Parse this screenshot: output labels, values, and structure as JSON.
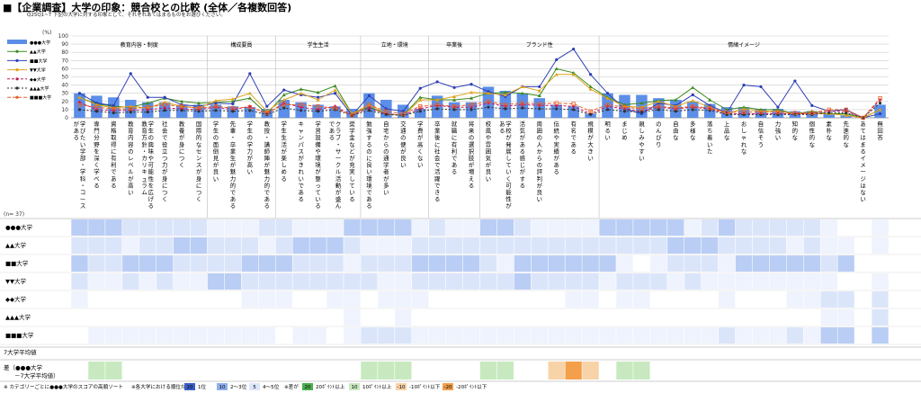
{
  "page": {
    "title": "■【企業調査】大学の印象：競合校との比較 (全体／各複数回答)",
    "subtitle": "Q25Q1~7  下記の大学に対する印象として、それぞれあてはまるものをお選びください。",
    "n_label": "(n= 37)",
    "avg_label": "7大学平均値",
    "diff_label_1": "差（●●●大学",
    "diff_label_2": "－7大学平均値）",
    "foot_left": "※ カテゴリーごとに●●●大学のスコアの高順ソート",
    "foot_rank": "※各大学における順位が",
    "foot_diff": "※差が"
  },
  "rank_legend": [
    {
      "box": "20",
      "text": "1位",
      "bg": "#3b5fc7",
      "fg": "#ffffff"
    },
    {
      "box": "10",
      "text": "2～3位",
      "bg": "#8fb0ee",
      "fg": "#000000"
    },
    {
      "box": "5",
      "text": "4～5位",
      "bg": "#dce6fb",
      "fg": "#000000"
    }
  ],
  "diff_legend": [
    {
      "box": "20",
      "text": "20ﾎﾟｲﾝﾄ以上",
      "bg": "#4caf50"
    },
    {
      "box": "10",
      "text": "10ﾎﾟｲﾝﾄ以上",
      "bg": "#c8e9c0"
    },
    {
      "box": "-10",
      "text": "-10ﾎﾟｲﾝﾄ以下",
      "bg": "#f8d3a8"
    },
    {
      "box": "-20",
      "text": "-20ﾎﾟｲﾝﾄ以下",
      "bg": "#f4a04a"
    }
  ],
  "colors": {
    "bar": "#5b8ee8",
    "grid": "#cccccc",
    "s2": "#3b8a1f",
    "s3": "#2e3fb5",
    "s4": "#e0a21a",
    "s5": "#c2185b",
    "s6": "#333333",
    "s7": "#e85d2a"
  },
  "chart_data": {
    "type": "bar",
    "ylabel": "(%)",
    "ylim": [
      0,
      100
    ],
    "yticks": [
      0,
      10,
      20,
      30,
      40,
      50,
      60,
      70,
      80,
      90,
      100
    ],
    "grid": true,
    "legend_position": "top-left",
    "categories": [
      "学びたい学部・学科・コースがある",
      "専門分野を深く学べる",
      "資格取得に有利である",
      "教育内容のレベルが高い",
      "学生の興味や可能性を広げる教育方針・カリキュラム",
      "社会で役立つ力が身につく",
      "教養が身につく",
      "国際的なセンスが身につく",
      "学生の面倒見が良い",
      "先輩・卒業生が魅力的である",
      "学生の学力が高い",
      "教授・講師陣が魅力的である",
      "学生生活が楽しめる",
      "キャンパスがきれいである",
      "学習設備や環境が整っている",
      "クラブ・サークル活動が盛んである",
      "奨学金などが充実している",
      "勉強するのに良い環境である",
      "自宅からの通学者が多い",
      "交通の便が良い",
      "学費が高くない",
      "卒業後に社会で活躍できる",
      "就職に有利である",
      "将来の選択肢が増える",
      "校風や雰囲気が良い",
      "学校が発展していく可能性がある",
      "活気がある感じがする",
      "周囲の人からの評判が良い",
      "伝統や実績がある",
      "有名である",
      "規模が大きい",
      "明るい",
      "まじめ",
      "親しみやすい",
      "のんびり",
      "自由な",
      "多様な",
      "落ち着いた",
      "上品な",
      "おしゃれな",
      "自信そう",
      "力強い",
      "知的な",
      "個性的な",
      "素朴な",
      "先進的な",
      "あてはまるイメージはない",
      "無回答"
    ],
    "category_groups": [
      {
        "name": "教育内容・制度",
        "start": 0,
        "end": 7
      },
      {
        "name": "構成要員",
        "start": 8,
        "end": 11
      },
      {
        "name": "学生生活",
        "start": 12,
        "end": 16
      },
      {
        "name": "立地・環境",
        "start": 17,
        "end": 20
      },
      {
        "name": "卒業後",
        "start": 21,
        "end": 23
      },
      {
        "name": "ブランド性",
        "start": 24,
        "end": 30
      },
      {
        "name": "情緒イメージ",
        "start": 31,
        "end": 47
      }
    ],
    "series": [
      {
        "name": "●●●大学",
        "kind": "bar",
        "values": [
          30,
          27,
          25,
          22,
          19,
          19,
          16,
          16,
          16,
          14,
          13,
          11,
          22,
          19,
          16,
          14,
          11,
          30,
          22,
          16,
          11,
          27,
          19,
          19,
          38,
          33,
          30,
          24,
          16,
          14,
          5,
          30,
          28,
          28,
          24,
          22,
          20,
          17,
          13,
          13,
          11,
          11,
          8,
          8,
          5,
          3,
          0,
          16
        ]
      },
      {
        "name": "▲▲大学",
        "kind": "line",
        "values": [
          25,
          17,
          14,
          13,
          18,
          24,
          20,
          18,
          19,
          20,
          24,
          5,
          28,
          35,
          31,
          39,
          5,
          13,
          5,
          3,
          25,
          22,
          22,
          24,
          30,
          31,
          30,
          27,
          60,
          55,
          38,
          25,
          16,
          18,
          21,
          22,
          37,
          22,
          10,
          13,
          10,
          10,
          5,
          8,
          5,
          5,
          0,
          10
        ]
      },
      {
        "name": "■■大学",
        "kind": "line",
        "values": [
          30,
          18,
          15,
          54,
          25,
          25,
          16,
          14,
          18,
          17,
          54,
          14,
          34,
          28,
          25,
          30,
          3,
          27,
          11,
          8,
          36,
          44,
          37,
          41,
          32,
          26,
          38,
          38,
          71,
          84,
          53,
          30,
          11,
          5,
          18,
          15,
          28,
          15,
          6,
          40,
          38,
          13,
          45,
          15,
          8,
          10,
          0,
          5
        ]
      },
      {
        "name": "▼▼大学",
        "kind": "line",
        "values": [
          25,
          16,
          12,
          14,
          12,
          19,
          14,
          12,
          21,
          23,
          30,
          8,
          22,
          30,
          22,
          34,
          5,
          16,
          5,
          3,
          22,
          22,
          26,
          31,
          30,
          28,
          38,
          33,
          53,
          53,
          35,
          24,
          14,
          13,
          20,
          14,
          21,
          13,
          5,
          11,
          8,
          8,
          5,
          5,
          5,
          3,
          0,
          10
        ]
      },
      {
        "name": "◆◆大学",
        "kind": "line",
        "values": [
          19,
          10,
          9,
          9,
          10,
          12,
          11,
          10,
          13,
          10,
          14,
          5,
          18,
          13,
          10,
          14,
          3,
          12,
          5,
          3,
          11,
          15,
          13,
          13,
          18,
          14,
          16,
          15,
          15,
          14,
          5,
          14,
          11,
          8,
          13,
          11,
          13,
          11,
          5,
          5,
          5,
          5,
          5,
          5,
          8,
          8,
          0,
          22
        ]
      },
      {
        "name": "▲▲▲大学",
        "kind": "line",
        "values": [
          10,
          8,
          6,
          7,
          7,
          9,
          9,
          8,
          9,
          8,
          9,
          4,
          12,
          9,
          8,
          10,
          3,
          9,
          4,
          3,
          8,
          11,
          10,
          10,
          13,
          11,
          12,
          11,
          11,
          10,
          4,
          10,
          8,
          7,
          10,
          8,
          10,
          9,
          4,
          4,
          4,
          4,
          4,
          4,
          6,
          6,
          0,
          18
        ]
      },
      {
        "name": "■■■大学",
        "kind": "line",
        "values": [
          16,
          13,
          11,
          11,
          13,
          16,
          14,
          12,
          14,
          12,
          13,
          6,
          16,
          16,
          14,
          12,
          3,
          16,
          8,
          5,
          14,
          16,
          14,
          16,
          20,
          16,
          18,
          17,
          18,
          17,
          8,
          16,
          13,
          11,
          14,
          12,
          14,
          12,
          7,
          7,
          7,
          7,
          6,
          6,
          10,
          10,
          0,
          24
        ]
      }
    ]
  }
}
